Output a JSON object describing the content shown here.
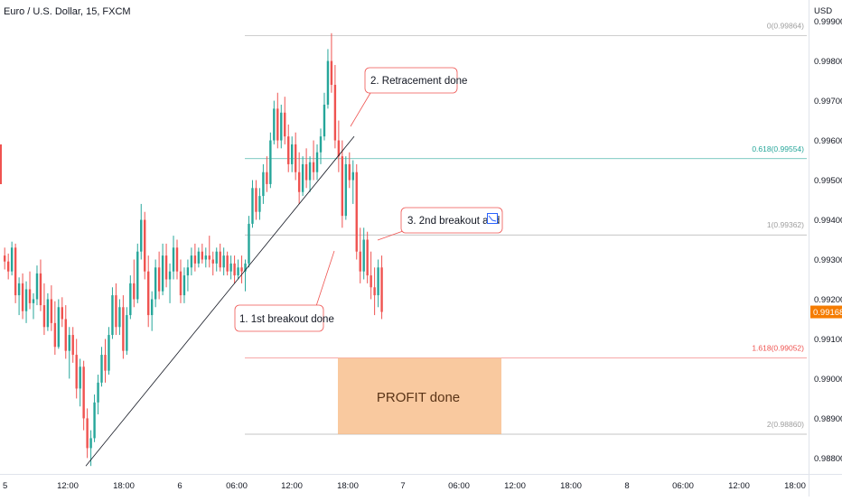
{
  "chart_data": {
    "type": "candlestick",
    "title": "Euro / U.S. Dollar, 15, FXCM",
    "currency_label": "USD",
    "ylim": [
      0.9876,
      0.9994
    ],
    "y_ticks": [
      "0.99900",
      "0.99800",
      "0.99700",
      "0.99600",
      "0.99500",
      "0.99400",
      "0.99300",
      "0.99200",
      "0.99100",
      "0.99000",
      "0.98900",
      "0.98800"
    ],
    "x_ticks": [
      "5",
      "12:00",
      "18:00",
      "6",
      "06:00",
      "12:00",
      "18:00",
      "7",
      "06:00",
      "12:00",
      "18:00",
      "8",
      "06:00",
      "12:00",
      "18:00"
    ],
    "last_price": "0.99168",
    "colors": {
      "up": "#26a69a",
      "down": "#ef5350",
      "fib_0": "#9e9e9e",
      "fib_618": "#26a69a",
      "fib_1": "#9e9e9e",
      "fib_1618": "#ef5350",
      "fib_2": "#9e9e9e",
      "profit_fill": "#f7b77f",
      "price_label_bg": "#f57c00"
    },
    "fib_levels": [
      {
        "name": "fib-0",
        "label": "0(0.99864)",
        "value": 0.99864
      },
      {
        "name": "fib-0618",
        "label": "0.618(0.99554)",
        "value": 0.99554
      },
      {
        "name": "fib-1",
        "label": "1(0.99362)",
        "value": 0.99362
      },
      {
        "name": "fib-1618",
        "label": "1.618(0.99052)",
        "value": 0.99052
      },
      {
        "name": "fib-2",
        "label": "2(0.98860)",
        "value": 0.9886
      }
    ],
    "trendline": {
      "from": [
        0.9878
      ],
      "to": [
        0.9961
      ]
    },
    "annotations": [
      {
        "name": "callout-retracement",
        "text": "2. Retracement done"
      },
      {
        "name": "callout-2nd-breakout",
        "text": "3. 2nd breakout and"
      },
      {
        "name": "callout-1st-breakout",
        "text": "1. 1st breakout done"
      }
    ],
    "profit_box": {
      "label": "PROFIT done",
      "top": 0.99052,
      "bottom": 0.9886
    },
    "candles": [
      [
        0.9931,
        0.9933,
        0.99275,
        0.99295
      ],
      [
        0.99295,
        0.99315,
        0.9925,
        0.9927
      ],
      [
        0.9927,
        0.99345,
        0.9926,
        0.9933
      ],
      [
        0.9933,
        0.9934,
        0.9919,
        0.9921
      ],
      [
        0.9921,
        0.99255,
        0.9916,
        0.9924
      ],
      [
        0.9924,
        0.99265,
        0.9915,
        0.9917
      ],
      [
        0.9917,
        0.99245,
        0.9914,
        0.99225
      ],
      [
        0.99225,
        0.9927,
        0.99175,
        0.9919
      ],
      [
        0.9919,
        0.99215,
        0.9915,
        0.992
      ],
      [
        0.992,
        0.99285,
        0.99185,
        0.99265
      ],
      [
        0.99265,
        0.993,
        0.9917,
        0.99185
      ],
      [
        0.99185,
        0.9924,
        0.9911,
        0.9913
      ],
      [
        0.9913,
        0.99215,
        0.9912,
        0.992
      ],
      [
        0.992,
        0.99235,
        0.9912,
        0.9914
      ],
      [
        0.9914,
        0.99195,
        0.9906,
        0.9908
      ],
      [
        0.9908,
        0.992,
        0.99075,
        0.9918
      ],
      [
        0.9918,
        0.99205,
        0.9913,
        0.9915
      ],
      [
        0.9915,
        0.99185,
        0.9905,
        0.9907
      ],
      [
        0.9907,
        0.9913,
        0.99,
        0.9911
      ],
      [
        0.9911,
        0.9913,
        0.9904,
        0.9906
      ],
      [
        0.9906,
        0.991,
        0.9895,
        0.98975
      ],
      [
        0.98975,
        0.9905,
        0.9893,
        0.9903
      ],
      [
        0.9903,
        0.99045,
        0.9887,
        0.989
      ],
      [
        0.989,
        0.98925,
        0.988,
        0.98825
      ],
      [
        0.98825,
        0.9887,
        0.9878,
        0.9885
      ],
      [
        0.9885,
        0.9896,
        0.9884,
        0.9894
      ],
      [
        0.9894,
        0.9901,
        0.9891,
        0.9899
      ],
      [
        0.9899,
        0.9908,
        0.9898,
        0.9906
      ],
      [
        0.9906,
        0.991,
        0.9899,
        0.9902
      ],
      [
        0.9902,
        0.9913,
        0.9901,
        0.9911
      ],
      [
        0.9911,
        0.9923,
        0.991,
        0.9921
      ],
      [
        0.9921,
        0.9924,
        0.9911,
        0.9913
      ],
      [
        0.9913,
        0.992,
        0.9911,
        0.9918
      ],
      [
        0.9918,
        0.9921,
        0.9905,
        0.9907
      ],
      [
        0.9907,
        0.9918,
        0.9906,
        0.9916
      ],
      [
        0.9916,
        0.9926,
        0.9915,
        0.9924
      ],
      [
        0.9924,
        0.993,
        0.9918,
        0.992
      ],
      [
        0.992,
        0.9934,
        0.9919,
        0.9932
      ],
      [
        0.9932,
        0.9944,
        0.993,
        0.994
      ],
      [
        0.994,
        0.9942,
        0.9925,
        0.9927
      ],
      [
        0.9927,
        0.9931,
        0.9913,
        0.9916
      ],
      [
        0.9916,
        0.9922,
        0.9912,
        0.992
      ],
      [
        0.992,
        0.993,
        0.9918,
        0.9928
      ],
      [
        0.9928,
        0.9932,
        0.992,
        0.9922
      ],
      [
        0.9922,
        0.9934,
        0.9921,
        0.9931
      ],
      [
        0.9931,
        0.9934,
        0.9923,
        0.9925
      ],
      [
        0.9925,
        0.9929,
        0.9919,
        0.9927
      ],
      [
        0.9927,
        0.9936,
        0.9925,
        0.9933
      ],
      [
        0.9933,
        0.9935,
        0.9925,
        0.9927
      ],
      [
        0.9927,
        0.993,
        0.9919,
        0.9921
      ],
      [
        0.9921,
        0.9928,
        0.9919,
        0.9926
      ],
      [
        0.9926,
        0.993,
        0.9922,
        0.9928
      ],
      [
        0.9928,
        0.9933,
        0.9926,
        0.9931
      ],
      [
        0.9931,
        0.9934,
        0.9927,
        0.9929
      ],
      [
        0.9929,
        0.9933,
        0.9928,
        0.9932
      ],
      [
        0.9932,
        0.9934,
        0.9929,
        0.993
      ],
      [
        0.993,
        0.9933,
        0.9928,
        0.9931
      ],
      [
        0.9931,
        0.9936,
        0.9928,
        0.993
      ],
      [
        0.993,
        0.9932,
        0.9926,
        0.9929
      ],
      [
        0.9929,
        0.9933,
        0.9927,
        0.9932
      ],
      [
        0.9932,
        0.9934,
        0.9927,
        0.9928
      ],
      [
        0.9928,
        0.9933,
        0.9926,
        0.9931
      ],
      [
        0.9931,
        0.9932,
        0.9926,
        0.9927
      ],
      [
        0.9927,
        0.9931,
        0.9925,
        0.9929
      ],
      [
        0.9929,
        0.9931,
        0.9924,
        0.9926
      ],
      [
        0.9926,
        0.993,
        0.9925,
        0.9928
      ],
      [
        0.9928,
        0.9931,
        0.9924,
        0.9927
      ],
      [
        0.9927,
        0.993,
        0.9922,
        0.9929
      ],
      [
        0.9929,
        0.9941,
        0.9928,
        0.9939
      ],
      [
        0.9939,
        0.995,
        0.9938,
        0.9948
      ],
      [
        0.9948,
        0.995,
        0.994,
        0.9942
      ],
      [
        0.9942,
        0.9948,
        0.994,
        0.9946
      ],
      [
        0.9946,
        0.9954,
        0.9944,
        0.9952
      ],
      [
        0.9952,
        0.9956,
        0.9947,
        0.9949
      ],
      [
        0.9949,
        0.9962,
        0.9948,
        0.996
      ],
      [
        0.996,
        0.997,
        0.9959,
        0.9968
      ],
      [
        0.9968,
        0.9972,
        0.9958,
        0.996
      ],
      [
        0.996,
        0.9969,
        0.9958,
        0.9967
      ],
      [
        0.9967,
        0.9971,
        0.9959,
        0.9961
      ],
      [
        0.9961,
        0.9964,
        0.9952,
        0.9954
      ],
      [
        0.9954,
        0.9961,
        0.9952,
        0.9959
      ],
      [
        0.9959,
        0.9962,
        0.995,
        0.9952
      ],
      [
        0.9952,
        0.9957,
        0.9944,
        0.9947
      ],
      [
        0.9947,
        0.9956,
        0.9946,
        0.9954
      ],
      [
        0.9954,
        0.9958,
        0.9948,
        0.995
      ],
      [
        0.995,
        0.9956,
        0.9947,
        0.99545
      ],
      [
        0.99545,
        0.996,
        0.995,
        0.9952
      ],
      [
        0.9952,
        0.9959,
        0.995,
        0.9957
      ],
      [
        0.9957,
        0.9963,
        0.9954,
        0.9961
      ],
      [
        0.9961,
        0.9972,
        0.996,
        0.9969
      ],
      [
        0.9969,
        0.9983,
        0.9968,
        0.998
      ],
      [
        0.998,
        0.9987,
        0.9972,
        0.9974
      ],
      [
        0.9974,
        0.9979,
        0.9958,
        0.996
      ],
      [
        0.996,
        0.9965,
        0.9952,
        0.9956
      ],
      [
        0.9956,
        0.996,
        0.9938,
        0.9941
      ],
      [
        0.9941,
        0.9956,
        0.994,
        0.9954
      ],
      [
        0.9954,
        0.9957,
        0.9948,
        0.995
      ],
      [
        0.995,
        0.9955,
        0.9944,
        0.9952
      ],
      [
        0.9952,
        0.9954,
        0.993,
        0.9932
      ],
      [
        0.9932,
        0.9938,
        0.9924,
        0.9927
      ],
      [
        0.9927,
        0.9938,
        0.9925,
        0.9935
      ],
      [
        0.9935,
        0.9937,
        0.9924,
        0.9926
      ],
      [
        0.9926,
        0.9932,
        0.992,
        0.9923
      ],
      [
        0.9923,
        0.9928,
        0.9916,
        0.9921
      ],
      [
        0.9921,
        0.993,
        0.9918,
        0.9928
      ],
      [
        0.9928,
        0.9931,
        0.9915,
        0.99168
      ]
    ]
  }
}
